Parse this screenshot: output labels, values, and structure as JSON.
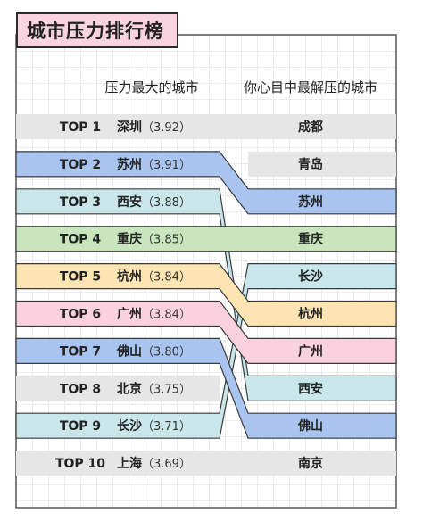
{
  "title": "城市压力排行榜",
  "chart_data": {
    "type": "table",
    "left_header": "压力最大的城市",
    "right_header": "你心目中最解压的城市",
    "ranks": [
      "TOP 1",
      "TOP 2",
      "TOP 3",
      "TOP 4",
      "TOP 5",
      "TOP 6",
      "TOP 7",
      "TOP 8",
      "TOP 9",
      "TOP 10"
    ],
    "left": [
      {
        "city": "深圳",
        "score": "（3.92）",
        "color": "#e6e6e6"
      },
      {
        "city": "苏州",
        "score": "（3.91）",
        "color": "#a9c4ef"
      },
      {
        "city": "西安",
        "score": "（3.88）",
        "color": "#c9e7ea"
      },
      {
        "city": "重庆",
        "score": "（3.85）",
        "color": "#c8e5bd"
      },
      {
        "city": "杭州",
        "score": "（3.84）",
        "color": "#fde5b3"
      },
      {
        "city": "广州",
        "score": "（3.84）",
        "color": "#fad1df"
      },
      {
        "city": "佛山",
        "score": "（3.80）",
        "color": "#a9c4ef"
      },
      {
        "city": "北京",
        "score": "（3.75）",
        "color": "#e6e6e6"
      },
      {
        "city": "长沙",
        "score": "（3.71）",
        "color": "#c9e7ea"
      },
      {
        "city": "上海",
        "score": "（3.69）",
        "color": "#e6e6e6"
      }
    ],
    "right": [
      {
        "city": "成都",
        "color": "#e6e6e6",
        "from": null
      },
      {
        "city": "青岛",
        "color": "#e6e6e6",
        "from": null
      },
      {
        "city": "苏州",
        "color": "#a9c4ef",
        "from": 1
      },
      {
        "city": "重庆",
        "color": "#c8e5bd",
        "from": 3
      },
      {
        "city": "长沙",
        "color": "#c9e7ea",
        "from": 8
      },
      {
        "city": "杭州",
        "color": "#fde5b3",
        "from": 4
      },
      {
        "city": "广州",
        "color": "#fad1df",
        "from": 5
      },
      {
        "city": "西安",
        "color": "#c9e7ea",
        "from": 2
      },
      {
        "city": "佛山",
        "color": "#a9c4ef",
        "from": 6
      },
      {
        "city": "南京",
        "color": "#e6e6e6",
        "from": null
      }
    ]
  }
}
